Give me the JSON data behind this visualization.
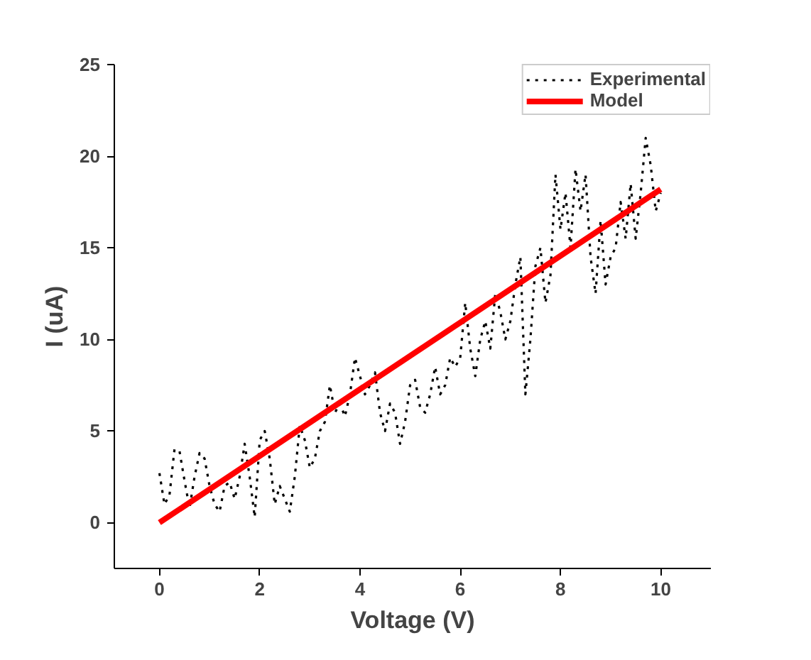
{
  "chart_data": {
    "type": "line",
    "xlabel": "Voltage (V)",
    "ylabel": "I (uA)",
    "xlim": [
      -0.9,
      11
    ],
    "ylim": [
      -2.5,
      25
    ],
    "xticks": [
      0,
      2,
      4,
      6,
      8,
      10
    ],
    "yticks": [
      0,
      5,
      10,
      15,
      20,
      25
    ],
    "grid": false,
    "legend": "top right",
    "series": [
      {
        "name": "Experimental",
        "color": "#000000",
        "line_style": "dotted",
        "x": [
          0,
          0.1,
          0.2,
          0.3,
          0.4,
          0.5,
          0.6,
          0.7,
          0.8,
          0.9,
          1.0,
          1.1,
          1.2,
          1.3,
          1.4,
          1.5,
          1.6,
          1.7,
          1.8,
          1.9,
          2.0,
          2.1,
          2.2,
          2.3,
          2.4,
          2.5,
          2.6,
          2.7,
          2.8,
          2.9,
          3.0,
          3.1,
          3.2,
          3.3,
          3.4,
          3.5,
          3.6,
          3.7,
          3.8,
          3.9,
          4.0,
          4.1,
          4.2,
          4.3,
          4.4,
          4.5,
          4.6,
          4.7,
          4.8,
          4.9,
          5.0,
          5.1,
          5.2,
          5.3,
          5.4,
          5.5,
          5.6,
          5.7,
          5.8,
          5.9,
          6.0,
          6.1,
          6.2,
          6.3,
          6.4,
          6.5,
          6.6,
          6.7,
          6.8,
          6.9,
          7.0,
          7.1,
          7.2,
          7.3,
          7.4,
          7.5,
          7.6,
          7.7,
          7.8,
          7.9,
          8.0,
          8.1,
          8.2,
          8.3,
          8.4,
          8.5,
          8.6,
          8.7,
          8.8,
          8.9,
          9.0,
          9.1,
          9.2,
          9.3,
          9.4,
          9.5,
          9.6,
          9.7,
          9.8,
          9.9,
          10.0
        ],
        "values": [
          2.7,
          1.0,
          1.5,
          4.0,
          3.9,
          2.3,
          0.8,
          2.5,
          3.8,
          3.5,
          2.0,
          1.0,
          0.6,
          2.0,
          2.2,
          1.3,
          2.5,
          4.3,
          2.5,
          0.3,
          4.5,
          5.0,
          3.5,
          1.0,
          2.0,
          1.3,
          0.6,
          2.5,
          5.3,
          4.5,
          3.0,
          3.5,
          5.0,
          5.5,
          7.5,
          6.0,
          6.5,
          5.8,
          7.0,
          9.0,
          8.0,
          7.0,
          7.5,
          8.2,
          6.0,
          5.0,
          6.5,
          6.0,
          4.3,
          5.5,
          7.5,
          7.8,
          6.3,
          6.0,
          7.0,
          8.5,
          7.0,
          7.5,
          9.0,
          8.5,
          9.0,
          12.0,
          9.5,
          8.0,
          10.0,
          11.0,
          9.5,
          12.5,
          11.5,
          10.0,
          11.0,
          13.0,
          14.5,
          7.0,
          10.0,
          14.0,
          15.0,
          12.0,
          13.5,
          19.0,
          16.0,
          18.0,
          15.0,
          19.3,
          17.0,
          19.0,
          14.5,
          12.5,
          16.5,
          13.0,
          14.5,
          15.0,
          17.5,
          15.5,
          18.5,
          15.5,
          18.0,
          21.0,
          19.5,
          17.0,
          18.0
        ]
      },
      {
        "name": "Model",
        "color": "#ff0000",
        "line_style": "solid",
        "x": [
          0,
          10
        ],
        "values": [
          0,
          18.2
        ]
      }
    ]
  }
}
